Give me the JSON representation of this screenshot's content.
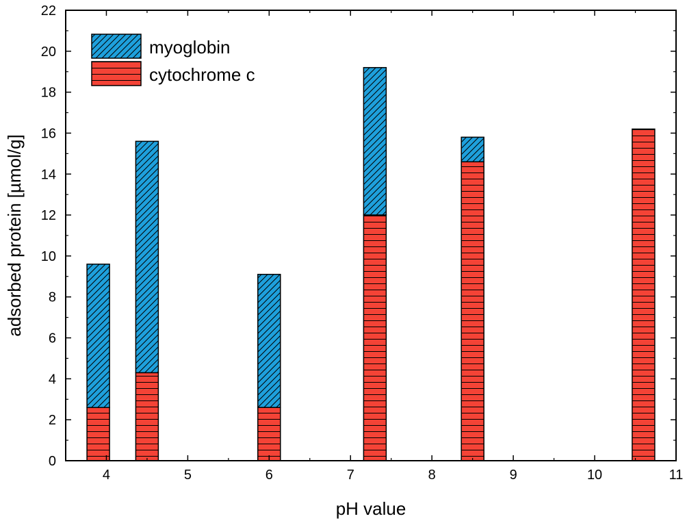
{
  "chart_data": {
    "type": "bar",
    "stacked": true,
    "x": [
      3.9,
      4.5,
      6.0,
      7.3,
      8.5,
      10.6
    ],
    "series": [
      {
        "name": "cytochrome c",
        "color": "#f44336",
        "hatch": "horizontal",
        "values": [
          2.6,
          4.3,
          2.6,
          12.0,
          14.6,
          16.2
        ]
      },
      {
        "name": "myoglobin",
        "color": "#1ea0dc",
        "hatch": "diagonal",
        "values": [
          7.0,
          11.3,
          6.5,
          7.2,
          1.2,
          0
        ]
      }
    ],
    "xlabel": "pH value",
    "ylabel": "adsorbed protein [µmol/g]",
    "xlim": [
      3.5,
      11
    ],
    "ylim": [
      0,
      22
    ],
    "xticks": [
      4,
      5,
      6,
      7,
      8,
      9,
      10,
      11
    ],
    "yticks": [
      0,
      2,
      4,
      6,
      8,
      10,
      12,
      14,
      16,
      18,
      20,
      22
    ],
    "legend": {
      "position": "top-left",
      "entries": [
        "myoglobin",
        "cytochrome c"
      ]
    }
  }
}
